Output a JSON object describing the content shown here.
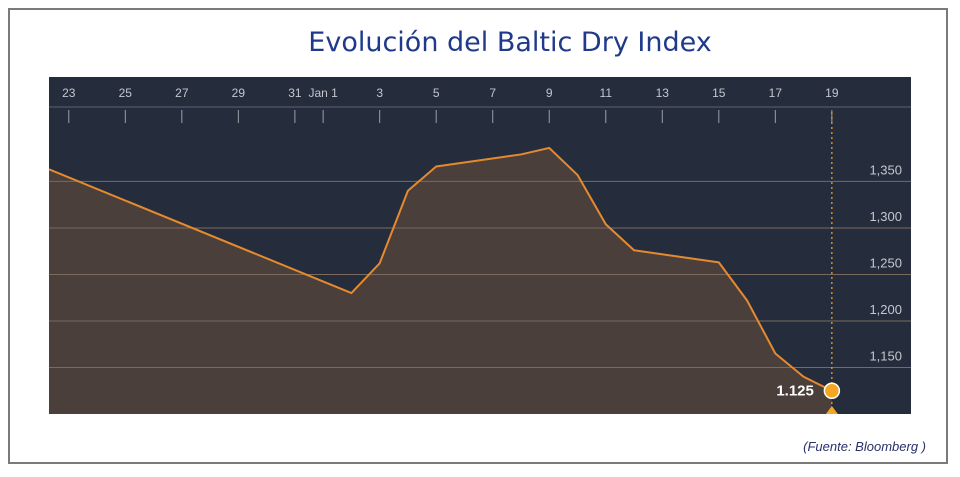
{
  "title": "Evolución del Baltic Dry Index",
  "source": "(Fuente: Bloomberg )",
  "chart_data": {
    "type": "area",
    "x_tick_labels": [
      {
        "label": "23",
        "day": 0
      },
      {
        "label": "25",
        "day": 2
      },
      {
        "label": "27",
        "day": 4
      },
      {
        "label": "29",
        "day": 6
      },
      {
        "label": "31",
        "day": 8
      },
      {
        "label": "Jan 1",
        "day": 9
      },
      {
        "label": "3",
        "day": 11
      },
      {
        "label": "5",
        "day": 13
      },
      {
        "label": "7",
        "day": 15
      },
      {
        "label": "9",
        "day": 17
      },
      {
        "label": "11",
        "day": 19
      },
      {
        "label": "13",
        "day": 21
      },
      {
        "label": "15",
        "day": 23
      },
      {
        "label": "17",
        "day": 25
      },
      {
        "label": "19",
        "day": 27
      }
    ],
    "y_ticks": [
      "1,150",
      "1,200",
      "1,250",
      "1,300",
      "1,350"
    ],
    "y_tick_values": [
      1150,
      1200,
      1250,
      1300,
      1350
    ],
    "ylim": [
      1100,
      1430
    ],
    "xlim": [
      -0.7,
      29.8
    ],
    "points": [
      {
        "day": -0.7,
        "value": 1363
      },
      {
        "day": 10,
        "value": 1230
      },
      {
        "day": 11,
        "value": 1262
      },
      {
        "day": 12,
        "value": 1340
      },
      {
        "day": 13,
        "value": 1366
      },
      {
        "day": 16,
        "value": 1379
      },
      {
        "day": 17,
        "value": 1386
      },
      {
        "day": 18,
        "value": 1357
      },
      {
        "day": 19,
        "value": 1304
      },
      {
        "day": 20,
        "value": 1276
      },
      {
        "day": 23,
        "value": 1263
      },
      {
        "day": 24,
        "value": 1222
      },
      {
        "day": 25,
        "value": 1165
      },
      {
        "day": 26,
        "value": 1140
      },
      {
        "day": 27,
        "value": 1125
      }
    ],
    "last_value_label": "1.125",
    "grid": true,
    "colors": {
      "background": "#252d3d",
      "area_fill": "#4a3f3a",
      "line": "#e58a2e",
      "grid": "#7a6a60",
      "tick_text": "#c4c7cc",
      "marker": "#f5a623",
      "title": "#1f3a8a"
    }
  }
}
